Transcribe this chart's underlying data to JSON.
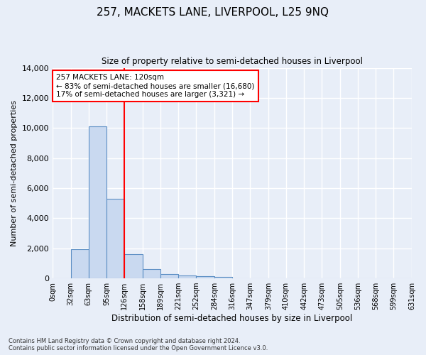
{
  "title": "257, MACKETS LANE, LIVERPOOL, L25 9NQ",
  "subtitle": "Size of property relative to semi-detached houses in Liverpool",
  "xlabel": "Distribution of semi-detached houses by size in Liverpool",
  "ylabel": "Number of semi-detached properties",
  "bin_labels": [
    "0sqm",
    "32sqm",
    "63sqm",
    "95sqm",
    "126sqm",
    "158sqm",
    "189sqm",
    "221sqm",
    "252sqm",
    "284sqm",
    "316sqm",
    "347sqm",
    "379sqm",
    "410sqm",
    "442sqm",
    "473sqm",
    "505sqm",
    "536sqm",
    "568sqm",
    "599sqm",
    "631sqm"
  ],
  "bin_edges": [
    0,
    32,
    63,
    95,
    126,
    158,
    189,
    221,
    252,
    284,
    316,
    347,
    379,
    410,
    442,
    473,
    505,
    536,
    568,
    599,
    631
  ],
  "bar_values": [
    0,
    1950,
    10100,
    5300,
    1600,
    620,
    280,
    175,
    140,
    120,
    0,
    0,
    0,
    0,
    0,
    0,
    0,
    0,
    0,
    0
  ],
  "bar_color": "#c9d9f0",
  "bar_edge_color": "#5b8ec4",
  "highlight_line_x": 126,
  "highlight_line_color": "red",
  "annotation_text": "257 MACKETS LANE: 120sqm\n← 83% of semi-detached houses are smaller (16,680)\n17% of semi-detached houses are larger (3,321) →",
  "annotation_box_color": "white",
  "annotation_box_edge": "red",
  "ylim": [
    0,
    14000
  ],
  "yticks": [
    0,
    2000,
    4000,
    6000,
    8000,
    10000,
    12000,
    14000
  ],
  "footer_line1": "Contains HM Land Registry data © Crown copyright and database right 2024.",
  "footer_line2": "Contains public sector information licensed under the Open Government Licence v3.0.",
  "bg_color": "#e8eef8",
  "plot_bg_color": "#e8eef8",
  "grid_color": "#ffffff",
  "xlim": [
    0,
    631
  ]
}
